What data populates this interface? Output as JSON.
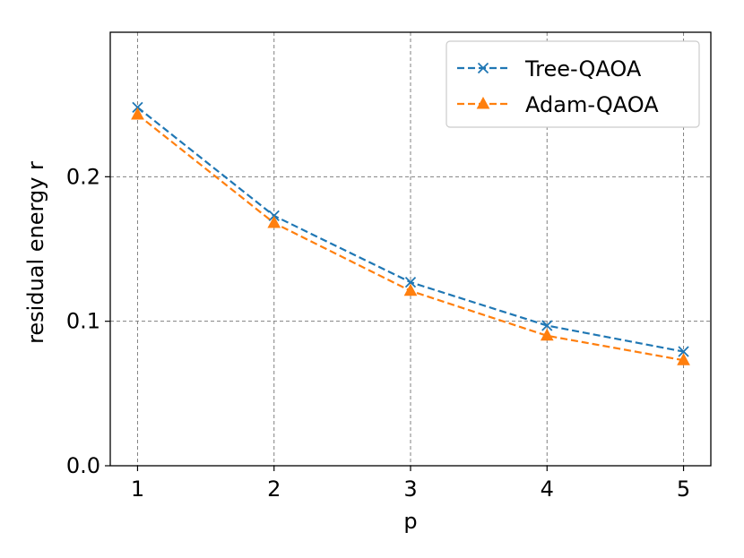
{
  "chart_data": {
    "type": "line",
    "title": "",
    "xlabel": "p",
    "ylabel": "residual energy r",
    "xlim": [
      0.8,
      5.2
    ],
    "ylim": [
      0.0,
      0.3
    ],
    "xticks": [
      1,
      2,
      3,
      4,
      5
    ],
    "xtick_labels": [
      "1",
      "2",
      "3",
      "4",
      "5"
    ],
    "yticks": [
      0.0,
      0.1,
      0.2
    ],
    "ytick_labels": [
      "0.0",
      "0.1",
      "0.2"
    ],
    "grid": true,
    "legend_position": "top-right",
    "x": [
      1,
      2,
      3,
      4,
      5
    ],
    "series": [
      {
        "name": "Tree-QAOA",
        "values": [
          0.248,
          0.173,
          0.127,
          0.097,
          0.079
        ],
        "color": "#1f77b4",
        "marker": "x",
        "linestyle": "dashed"
      },
      {
        "name": "Adam-QAOA",
        "values": [
          0.243,
          0.168,
          0.121,
          0.09,
          0.073
        ],
        "color": "#ff7f0e",
        "marker": "triangle",
        "linestyle": "dashed"
      }
    ]
  }
}
